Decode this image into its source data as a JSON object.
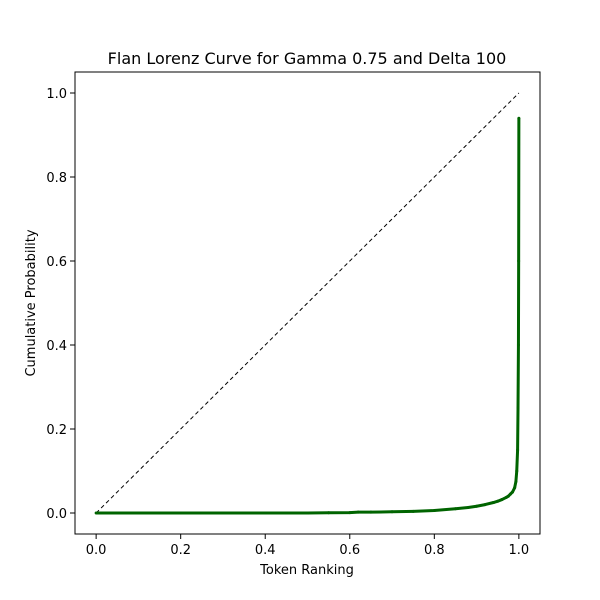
{
  "chart_data": {
    "type": "scatter",
    "title": "Flan Lorenz Curve for Gamma 0.75 and Delta 100",
    "xlabel": "Token Ranking",
    "ylabel": "Cumulative Probability",
    "xlim": [
      -0.05,
      1.05
    ],
    "ylim": [
      -0.05,
      1.05
    ],
    "x_ticks": [
      0.0,
      0.2,
      0.4,
      0.6,
      0.8,
      1.0
    ],
    "y_ticks": [
      0.0,
      0.2,
      0.4,
      0.6,
      0.8,
      1.0
    ],
    "x_tick_labels": [
      "0.0",
      "0.2",
      "0.4",
      "0.6",
      "0.8",
      "1.0"
    ],
    "y_tick_labels": [
      "0.0",
      "0.2",
      "0.4",
      "0.6",
      "0.8",
      "1.0"
    ],
    "grid": false,
    "series": [
      {
        "style": "dashed-line",
        "color": "#000000",
        "x": [
          0.0,
          1.0
        ],
        "y": [
          0.0,
          1.0
        ]
      },
      {
        "style": "dots",
        "color": "#006400",
        "x": [
          0.0,
          0.05,
          0.1,
          0.15,
          0.2,
          0.25,
          0.3,
          0.35,
          0.4,
          0.45,
          0.5,
          0.55,
          0.6,
          0.62,
          0.65,
          0.7,
          0.75,
          0.8,
          0.85,
          0.88,
          0.9,
          0.92,
          0.94,
          0.95,
          0.96,
          0.97,
          0.975,
          0.98,
          0.985,
          0.99,
          0.993,
          0.995,
          0.997,
          0.998,
          0.999,
          0.9995,
          1.0
        ],
        "y": [
          0.0,
          0.0,
          0.0,
          0.0,
          0.0,
          0.0,
          0.0,
          0.0,
          0.0,
          0.0,
          0.0,
          0.0005,
          0.001,
          0.002,
          0.002,
          0.003,
          0.004,
          0.006,
          0.01,
          0.013,
          0.016,
          0.02,
          0.025,
          0.028,
          0.032,
          0.037,
          0.04,
          0.045,
          0.05,
          0.06,
          0.075,
          0.1,
          0.15,
          0.25,
          0.4,
          0.6,
          0.94
        ]
      }
    ]
  }
}
